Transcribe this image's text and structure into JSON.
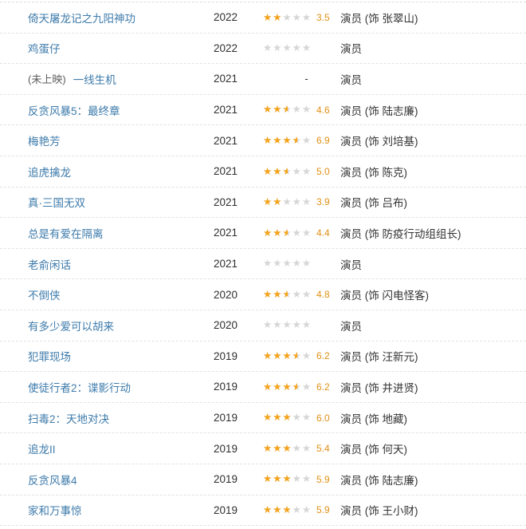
{
  "colors": {
    "link_blue": "#3e7bab",
    "star_filled": "#f5a31a",
    "star_empty": "#d6d6d6",
    "score_orange": "#e09015",
    "text_dark": "#333333",
    "divider": "#e3e3e3"
  },
  "icons": {
    "star_glyph": "★★★★★"
  },
  "table": {
    "columns": [
      "title",
      "year",
      "rating",
      "role"
    ],
    "rows": [
      {
        "prefix": "",
        "title": "倚天屠龙记之九阳神功",
        "year": "2022",
        "rating_type": "stars",
        "stars": 2,
        "score": "3.5",
        "role": "演员 (饰 张翠山)"
      },
      {
        "prefix": "",
        "title": "鸡蛋仔",
        "year": "2022",
        "rating_type": "empty",
        "stars": 0,
        "score": "",
        "role": "演员"
      },
      {
        "prefix": "(未上映)",
        "title": "一线生机",
        "year": "2021",
        "rating_type": "dash",
        "stars": 0,
        "score": "",
        "role": "演员",
        "dash": "-"
      },
      {
        "prefix": "",
        "title": "反贪风暴5：最终章",
        "year": "2021",
        "rating_type": "stars",
        "stars": 2.5,
        "score": "4.6",
        "role": "演员 (饰 陆志廉)"
      },
      {
        "prefix": "",
        "title": "梅艳芳",
        "year": "2021",
        "rating_type": "stars",
        "stars": 3.5,
        "score": "6.9",
        "role": "演员 (饰 刘培基)"
      },
      {
        "prefix": "",
        "title": "追虎擒龙",
        "year": "2021",
        "rating_type": "stars",
        "stars": 2.5,
        "score": "5.0",
        "role": "演员 (饰 陈克)"
      },
      {
        "prefix": "",
        "title": "真·三国无双",
        "year": "2021",
        "rating_type": "stars",
        "stars": 2,
        "score": "3.9",
        "role": "演员 (饰 吕布)"
      },
      {
        "prefix": "",
        "title": "总是有爱在隔离",
        "year": "2021",
        "rating_type": "stars",
        "stars": 2.5,
        "score": "4.4",
        "role": "演员 (饰 防疫行动组组长)"
      },
      {
        "prefix": "",
        "title": "老俞闲话",
        "year": "2021",
        "rating_type": "empty",
        "stars": 0,
        "score": "",
        "role": "演员"
      },
      {
        "prefix": "",
        "title": "不倒侠",
        "year": "2020",
        "rating_type": "stars",
        "stars": 2.5,
        "score": "4.8",
        "role": "演员 (饰 闪电怪客)"
      },
      {
        "prefix": "",
        "title": "有多少爱可以胡来",
        "year": "2020",
        "rating_type": "empty",
        "stars": 0,
        "score": "",
        "role": "演员"
      },
      {
        "prefix": "",
        "title": "犯罪现场",
        "year": "2019",
        "rating_type": "stars",
        "stars": 3.5,
        "score": "6.2",
        "role": "演员 (饰 汪新元)"
      },
      {
        "prefix": "",
        "title": "使徒行者2：谍影行动",
        "year": "2019",
        "rating_type": "stars",
        "stars": 3.5,
        "score": "6.2",
        "role": "演员 (饰 井进贤)"
      },
      {
        "prefix": "",
        "title": "扫毒2：天地对决",
        "year": "2019",
        "rating_type": "stars",
        "stars": 3,
        "score": "6.0",
        "role": "演员 (饰 地藏)"
      },
      {
        "prefix": "",
        "title": "追龙II",
        "year": "2019",
        "rating_type": "stars",
        "stars": 3,
        "score": "5.4",
        "role": "演员 (饰 何天)"
      },
      {
        "prefix": "",
        "title": "反贪风暴4",
        "year": "2019",
        "rating_type": "stars",
        "stars": 3,
        "score": "5.9",
        "role": "演员 (饰 陆志廉)"
      },
      {
        "prefix": "",
        "title": "家和万事惊",
        "year": "2019",
        "rating_type": "stars",
        "stars": 3,
        "score": "5.9",
        "role": "演员 (饰 王小财)"
      }
    ]
  }
}
